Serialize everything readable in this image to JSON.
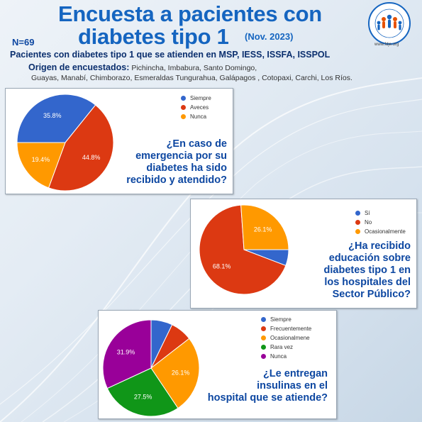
{
  "header": {
    "title_line1": "Encuesta a pacientes con",
    "title_line2": "diabetes tipo 1",
    "date": "(Nov. 2023)",
    "n": "N=69",
    "subtitle": "Pacientes con diabetes tipo 1 que se atienden en MSP, IESS, ISSFA, ISSPOL",
    "origin_lead": "Origen de encuestados:",
    "origin_line1": " Pichincha, Imbabura, Santo Domingo,",
    "origin_line2": "Guayas, Manabí, Chimborazo, Esmeraldas Tungurahua, Galápagos , Cotopaxi, Carchi, Los Ríos.",
    "logo_text": "Fundación Diabetes Juvenil Ecuador",
    "logo_url": "www.fdje.org"
  },
  "chart_data": [
    {
      "type": "pie",
      "question": [
        "¿En caso de",
        "emergencia por su",
        "diabetes ha sido",
        "recibido y atendido?"
      ],
      "categories": [
        "Siempre",
        "Aveces",
        "Nunca"
      ],
      "values": [
        35.8,
        44.8,
        19.4
      ],
      "labels": [
        "35.8%",
        "44.8%",
        "19.4%"
      ],
      "colors": [
        "#3366cc",
        "#dc3912",
        "#ff9900"
      ],
      "legend_position": "right"
    },
    {
      "type": "pie",
      "question": [
        "¿Ha recibido",
        "educación sobre",
        "diabetes tipo 1 en",
        "los hospitales del",
        "Sector Público?"
      ],
      "categories": [
        "Sí",
        "No",
        "Ocasionalmente"
      ],
      "values": [
        5.8,
        68.1,
        26.1
      ],
      "labels": [
        "",
        "68.1%",
        "26.1%"
      ],
      "colors": [
        "#3366cc",
        "#dc3912",
        "#ff9900"
      ],
      "legend_position": "right"
    },
    {
      "type": "pie",
      "question": [
        "¿Le entregan",
        "insulinas en el",
        "hospital que se atiende?"
      ],
      "categories": [
        "Siempre",
        "Frecuentemente",
        "Ocasionalmene",
        "Rara vez",
        "Nunca"
      ],
      "values": [
        7.2,
        7.3,
        26.1,
        27.5,
        31.9
      ],
      "labels": [
        "",
        "",
        "26.1%",
        "27.5%",
        "31.9%"
      ],
      "colors": [
        "#3366cc",
        "#dc3912",
        "#ff9900",
        "#109618",
        "#990099"
      ],
      "legend_position": "right"
    }
  ]
}
